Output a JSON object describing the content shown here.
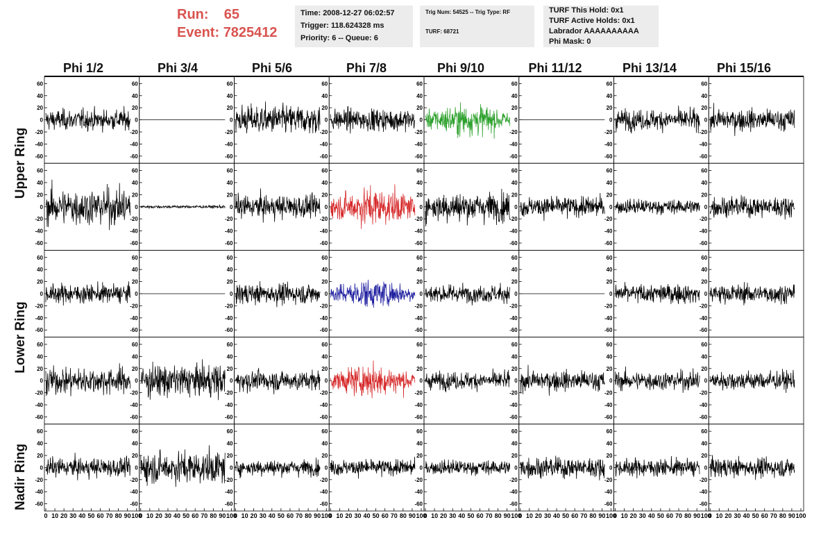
{
  "run_info": {
    "run_label": "Run:",
    "run_value": "65",
    "event_label": "Event:",
    "event_value": "7825412"
  },
  "time_box": {
    "time": "Time: 2008-12-27 06:02:57",
    "trigger": "Trigger: 118.624328 ms",
    "priority": "Priority: 6 -- Queue: 6"
  },
  "trig_box": {
    "trig": "Trig Num: 54525 -- Trig Type: RF",
    "turf": "TURF: 68721"
  },
  "turf_box": {
    "this_hold": "TURF This Hold: 0x1",
    "active_holds": "TURF Active Holds: 0x1",
    "labrador": "Labrador AAAAAAAAAA",
    "phi_mask": "Phi Mask: 0"
  },
  "column_labels": [
    "Phi 1/2",
    "Phi 3/4",
    "Phi 5/6",
    "Phi 7/8",
    "Phi 9/10",
    "Phi 11/12",
    "Phi 13/14",
    "Phi 15/16"
  ],
  "ring_labels": [
    "Upper Ring",
    "Lower Ring",
    "Nadir Ring"
  ],
  "colors": {
    "trace": "#000000",
    "green_trace": "#2ca02c",
    "red_trace": "#d62728",
    "blue_trace": "#1f1fa0",
    "run_text": "#d9534f",
    "info_bg": "#ececec"
  },
  "chart_data": {
    "type": "line",
    "rows": 5,
    "cols": 8,
    "xlim": [
      0,
      100
    ],
    "ylim": [
      -65,
      65
    ],
    "x_ticks": [
      0,
      10,
      20,
      30,
      40,
      50,
      60,
      70,
      80,
      90,
      100
    ],
    "x_tick_labels": [
      "0",
      "10",
      "20",
      "30",
      "40",
      "50",
      "60",
      "70",
      "80",
      "90",
      "100"
    ],
    "y_ticks": [
      -60,
      -40,
      -20,
      0,
      20,
      40,
      60
    ],
    "y_tick_labels": [
      "-60",
      "-40",
      "-20",
      "0",
      "20",
      "40",
      "60"
    ],
    "panels": [
      [
        {
          "amplitude": 14,
          "color": "trace"
        },
        {
          "amplitude": 0,
          "color": "trace"
        },
        {
          "amplitude": 20,
          "color": "trace"
        },
        {
          "amplitude": 15,
          "color": "trace"
        },
        {
          "amplitude": 18,
          "color": "green_trace"
        },
        {
          "amplitude": 0,
          "color": "trace"
        },
        {
          "amplitude": 14,
          "color": "trace"
        },
        {
          "amplitude": 15,
          "color": "trace"
        }
      ],
      [
        {
          "amplitude": 25,
          "color": "trace"
        },
        {
          "amplitude": 2,
          "color": "trace"
        },
        {
          "amplitude": 16,
          "color": "trace"
        },
        {
          "amplitude": 22,
          "color": "red_trace"
        },
        {
          "amplitude": 20,
          "color": "trace"
        },
        {
          "amplitude": 14,
          "color": "trace"
        },
        {
          "amplitude": 10,
          "color": "trace"
        },
        {
          "amplitude": 14,
          "color": "trace"
        }
      ],
      [
        {
          "amplitude": 13,
          "color": "trace"
        },
        {
          "amplitude": 0,
          "color": "trace"
        },
        {
          "amplitude": 14,
          "color": "trace"
        },
        {
          "amplitude": 16,
          "color": "blue_trace"
        },
        {
          "amplitude": 12,
          "color": "trace"
        },
        {
          "amplitude": 0,
          "color": "trace"
        },
        {
          "amplitude": 13,
          "color": "trace"
        },
        {
          "amplitude": 13,
          "color": "trace"
        }
      ],
      [
        {
          "amplitude": 18,
          "color": "trace"
        },
        {
          "amplitude": 22,
          "color": "trace"
        },
        {
          "amplitude": 14,
          "color": "trace"
        },
        {
          "amplitude": 18,
          "color": "red_trace"
        },
        {
          "amplitude": 12,
          "color": "trace"
        },
        {
          "amplitude": 14,
          "color": "trace"
        },
        {
          "amplitude": 13,
          "color": "trace"
        },
        {
          "amplitude": 13,
          "color": "trace"
        }
      ],
      [
        {
          "amplitude": 13,
          "color": "trace"
        },
        {
          "amplitude": 22,
          "color": "trace"
        },
        {
          "amplitude": 11,
          "color": "trace"
        },
        {
          "amplitude": 11,
          "color": "trace"
        },
        {
          "amplitude": 10,
          "color": "trace"
        },
        {
          "amplitude": 14,
          "color": "trace"
        },
        {
          "amplitude": 12,
          "color": "trace"
        },
        {
          "amplitude": 13,
          "color": "trace"
        }
      ]
    ]
  }
}
